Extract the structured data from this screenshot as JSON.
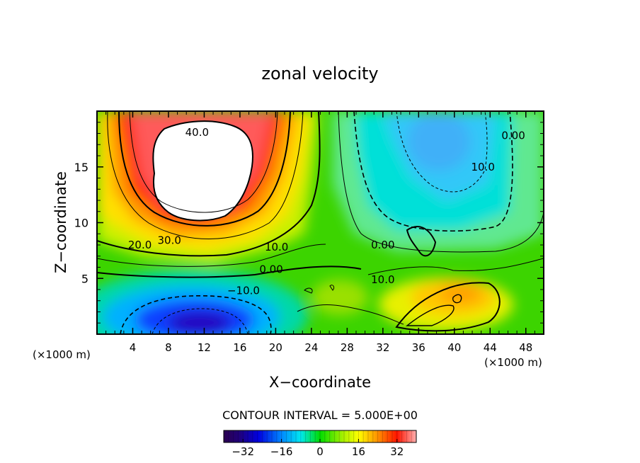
{
  "chart_data": {
    "type": "heatmap",
    "title": "zonal velocity",
    "xlabel": "X−coordinate",
    "ylabel": "Z−coordinate",
    "x_unit": "(×1000 m)",
    "x_ticks": [
      "4",
      "8",
      "12",
      "16",
      "20",
      "24",
      "28",
      "32",
      "36",
      "40",
      "44",
      "48"
    ],
    "y_ticks": [
      "5",
      "10",
      "15"
    ],
    "xlim": [
      0,
      50
    ],
    "ylim": [
      0,
      20
    ],
    "contour_interval_label": "CONTOUR INTERVAL = 5.000E+00",
    "contour_interval": 5,
    "colorbar": {
      "range": [
        -40,
        40
      ],
      "ticks": [
        "−32",
        "−16",
        "0",
        "16",
        "32"
      ]
    },
    "contour_labels": [
      {
        "text": "40.0",
        "x": 11.2,
        "y": 18.1
      },
      {
        "text": "30.0",
        "x": 8.1,
        "y": 8.4
      },
      {
        "text": "20.0",
        "x": 4.8,
        "y": 8.0
      },
      {
        "text": "10.0",
        "x": 20.1,
        "y": 7.8
      },
      {
        "text": "0.00",
        "x": 19.5,
        "y": 5.8
      },
      {
        "text": "−10.0",
        "x": 16.4,
        "y": 3.9
      },
      {
        "text": "0.00",
        "x": 32.0,
        "y": 8.0
      },
      {
        "text": "10.0",
        "x": 32.0,
        "y": 4.9
      },
      {
        "text": "10.0",
        "x": 43.2,
        "y": 15.0
      },
      {
        "text": "0.00",
        "x": 46.6,
        "y": 17.8
      }
    ],
    "field_features": [
      {
        "kind": "max",
        "x": 11.5,
        "y": 15.0,
        "value": 45,
        "note": "white region above 40"
      },
      {
        "kind": "min",
        "x": 11.5,
        "y": 1.0,
        "value": -38
      },
      {
        "kind": "min",
        "x": 39.0,
        "y": 16.0,
        "value": -20
      },
      {
        "kind": "max",
        "x": 40.0,
        "y": 3.3,
        "value": 22
      }
    ]
  }
}
